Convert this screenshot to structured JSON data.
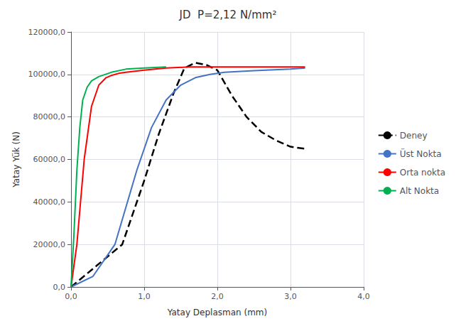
{
  "chart_data": {
    "type": "line",
    "title": "JD  P=2,12 N/mm²",
    "xlabel": "Yatay Deplasman (mm)",
    "ylabel": "Yatay Yük (N)",
    "xlim": [
      0,
      4.0
    ],
    "ylim": [
      0,
      120000
    ],
    "xticks": [
      {
        "value": 0.0,
        "label": "0,0"
      },
      {
        "value": 1.0,
        "label": "1,0"
      },
      {
        "value": 2.0,
        "label": "2,0"
      },
      {
        "value": 3.0,
        "label": "3,0"
      },
      {
        "value": 4.0,
        "label": "4,0"
      }
    ],
    "yticks": [
      {
        "value": 0,
        "label": "0,0"
      },
      {
        "value": 20000,
        "label": "20000,0"
      },
      {
        "value": 40000,
        "label": "40000,0"
      },
      {
        "value": 60000,
        "label": "60000,0"
      },
      {
        "value": 80000,
        "label": "80000,0"
      },
      {
        "value": 100000,
        "label": "100000,0"
      },
      {
        "value": 120000,
        "label": "120000,0"
      }
    ],
    "grid": true,
    "legend": "right",
    "series": [
      {
        "name": "Deney",
        "color": "#000000",
        "line_style": "dashed",
        "x": [
          0.0,
          0.7,
          1.0,
          1.2,
          1.4,
          1.55,
          1.7,
          1.85,
          2.0,
          2.2,
          2.4,
          2.6,
          2.8,
          3.0,
          3.2
        ],
        "values": [
          0,
          20000,
          50000,
          72000,
          91000,
          103000,
          105500,
          104500,
          102000,
          90000,
          80000,
          73000,
          69000,
          66000,
          65000
        ]
      },
      {
        "name": "Üst Nokta",
        "color": "#4472C4",
        "line_style": "solid",
        "x": [
          0.0,
          0.3,
          0.6,
          0.9,
          1.1,
          1.3,
          1.5,
          1.7,
          1.9,
          2.1,
          2.5,
          3.0,
          3.2
        ],
        "values": [
          0,
          5000,
          20000,
          55000,
          75000,
          88000,
          95000,
          98500,
          100000,
          101000,
          101800,
          102500,
          103000
        ]
      },
      {
        "name": "Orta nokta",
        "color": "#FF0000",
        "line_style": "solid",
        "x": [
          0.0,
          0.08,
          0.18,
          0.28,
          0.38,
          0.48,
          0.55,
          0.65,
          0.75,
          1.0,
          1.3,
          1.6,
          1.9,
          2.1,
          3.2
        ],
        "values": [
          0,
          20000,
          60000,
          85000,
          95000,
          98500,
          99500,
          100500,
          101000,
          102000,
          103000,
          103500,
          103500,
          103500,
          103500
        ]
      },
      {
        "name": "Alt Nokta",
        "color": "#00B050",
        "line_style": "solid",
        "x": [
          0.0,
          0.04,
          0.08,
          0.12,
          0.16,
          0.22,
          0.28,
          0.38,
          0.55,
          0.75,
          1.0,
          1.3
        ],
        "values": [
          0,
          25000,
          55000,
          75000,
          88000,
          94000,
          97000,
          99000,
          101000,
          102500,
          103000,
          103500
        ]
      }
    ]
  }
}
